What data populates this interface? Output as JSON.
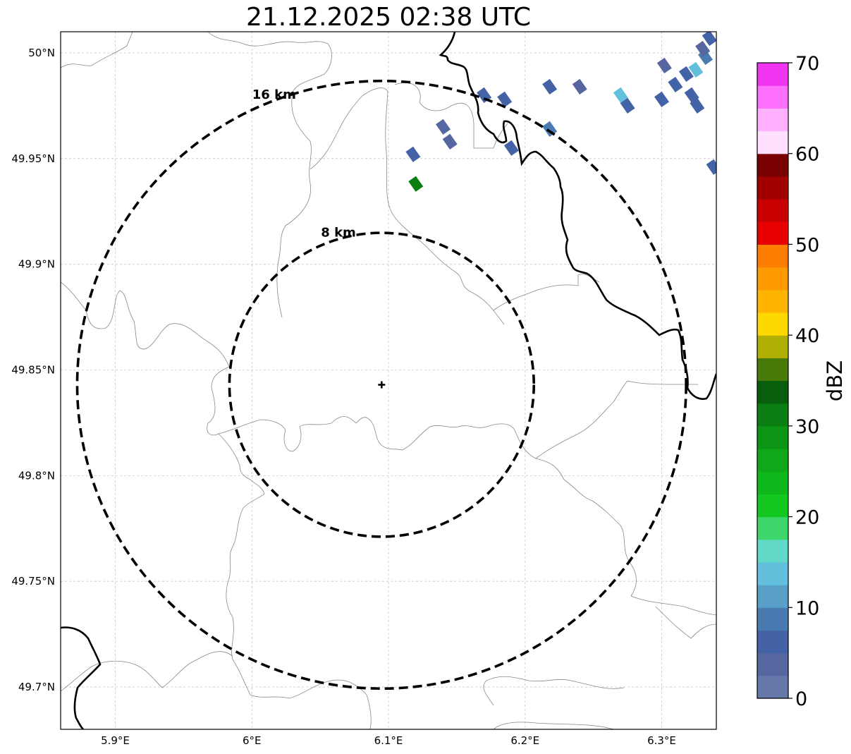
{
  "title": "21.12.2025 02:38 UTC",
  "map": {
    "lon_range": [
      5.86,
      6.34
    ],
    "lat_range": [
      49.68,
      50.01
    ],
    "x_ticks": [
      {
        "value": 5.9,
        "label": "5.9°E"
      },
      {
        "value": 6.0,
        "label": "6°E"
      },
      {
        "value": 6.1,
        "label": "6.1°E"
      },
      {
        "value": 6.2,
        "label": "6.2°E"
      },
      {
        "value": 6.3,
        "label": "6.3°E"
      }
    ],
    "y_ticks": [
      {
        "value": 50.0,
        "label": "50°N"
      },
      {
        "value": 49.95,
        "label": "49.95°N"
      },
      {
        "value": 49.9,
        "label": "49.9°N"
      },
      {
        "value": 49.85,
        "label": "49.85°N"
      },
      {
        "value": 49.8,
        "label": "49.8°N"
      },
      {
        "value": 49.75,
        "label": "49.75°N"
      },
      {
        "value": 49.7,
        "label": "49.7°N"
      }
    ],
    "grid": true,
    "radar_site": {
      "lon": 6.095,
      "lat": 49.843
    },
    "range_rings": [
      {
        "radius_km": 8,
        "label": "8 km"
      },
      {
        "radius_km": 16,
        "label": "16 km"
      }
    ],
    "echoes": [
      {
        "lon": 6.14,
        "lat": 49.965,
        "dbz": 3
      },
      {
        "lon": 6.145,
        "lat": 49.958,
        "dbz": 3
      },
      {
        "lon": 6.118,
        "lat": 49.952,
        "dbz": 5
      },
      {
        "lon": 6.12,
        "lat": 49.938,
        "dbz": 31
      },
      {
        "lon": 6.17,
        "lat": 49.98,
        "dbz": 5
      },
      {
        "lon": 6.185,
        "lat": 49.978,
        "dbz": 5
      },
      {
        "lon": 6.19,
        "lat": 49.955,
        "dbz": 5
      },
      {
        "lon": 6.218,
        "lat": 49.984,
        "dbz": 5
      },
      {
        "lon": 6.24,
        "lat": 49.984,
        "dbz": 3
      },
      {
        "lon": 6.218,
        "lat": 49.964,
        "dbz": 9
      },
      {
        "lon": 6.27,
        "lat": 49.98,
        "dbz": 13
      },
      {
        "lon": 6.275,
        "lat": 49.975,
        "dbz": 7
      },
      {
        "lon": 6.3,
        "lat": 49.978,
        "dbz": 5
      },
      {
        "lon": 6.302,
        "lat": 49.994,
        "dbz": 3
      },
      {
        "lon": 6.31,
        "lat": 49.985,
        "dbz": 5
      },
      {
        "lon": 6.322,
        "lat": 49.98,
        "dbz": 5
      },
      {
        "lon": 6.318,
        "lat": 49.99,
        "dbz": 7
      },
      {
        "lon": 6.325,
        "lat": 49.992,
        "dbz": 13
      },
      {
        "lon": 6.332,
        "lat": 49.998,
        "dbz": 9
      },
      {
        "lon": 6.335,
        "lat": 50.007,
        "dbz": 5
      },
      {
        "lon": 6.33,
        "lat": 50.002,
        "dbz": 3
      },
      {
        "lon": 6.326,
        "lat": 49.975,
        "dbz": 5
      },
      {
        "lon": 6.338,
        "lat": 49.946,
        "dbz": 5
      }
    ]
  },
  "colorbar": {
    "label": "dBZ",
    "min": 0,
    "max": 70,
    "step": 2.5,
    "tick_labels": [
      "0",
      "10",
      "20",
      "30",
      "40",
      "50",
      "60",
      "70"
    ],
    "colors": [
      "#6677aa",
      "#5566a0",
      "#4462a6",
      "#4a7bb0",
      "#58a0c8",
      "#62c0dd",
      "#62d8c8",
      "#3dd66a",
      "#12c820",
      "#0fb81a",
      "#0ea818",
      "#0c9414",
      "#0a7e12",
      "#075e0c",
      "#487a08",
      "#b0b004",
      "#ffd800",
      "#ffb400",
      "#ff9a00",
      "#ff7e00",
      "#e80000",
      "#c80000",
      "#a00000",
      "#780000",
      "#ffe0ff",
      "#ffb0ff",
      "#ff70ff",
      "#f036f0"
    ]
  }
}
